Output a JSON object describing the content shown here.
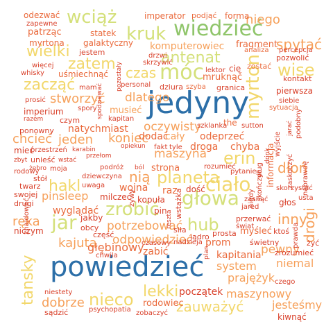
{
  "palette": [
    "#2c6fa8",
    "#8fc56a",
    "#d4e07a",
    "#f2d76b",
    "#f6a05a",
    "#ea6a3c",
    "#d9412b"
  ],
  "words": [
    {
      "text": "powiedzieć",
      "color": "#2c6fa8",
      "vertical": false
    },
    {
      "text": "jedyny",
      "color": "#2c6fa8",
      "vertical": false
    },
    {
      "text": "wiedzieć",
      "color": "#8fc56a",
      "vertical": false
    },
    {
      "text": "kruk",
      "color": "#d4e07a",
      "vertical": false
    },
    {
      "text": "móc",
      "color": "#d4e07a",
      "vertical": false
    },
    {
      "text": "głowa",
      "color": "#d4e07a",
      "vertical": false
    },
    {
      "text": "ciało",
      "color": "#f2d76b",
      "vertical": false
    },
    {
      "text": "antenat",
      "color": "#d4e07a",
      "vertical": false
    },
    {
      "text": "wciąż",
      "color": "#d4e07a",
      "vertical": false
    },
    {
      "text": "myrton",
      "color": "#f2d76b",
      "vertical": true
    },
    {
      "text": "zrobić",
      "color": "#d4e07a",
      "vertical": false
    },
    {
      "text": "jar",
      "color": "#d4e07a",
      "vertical": false
    },
    {
      "text": "nieco",
      "color": "#f2d76b",
      "vertical": false
    },
    {
      "text": "tansky",
      "color": "#f2d76b",
      "vertical": true
    },
    {
      "text": "planeta",
      "color": "#f2d76b",
      "vertical": false
    },
    {
      "text": "hub",
      "color": "#d4e07a",
      "vertical": false
    },
    {
      "text": "wise",
      "color": "#f2d76b",
      "vertical": false
    },
    {
      "text": "erin",
      "color": "#f2d76b",
      "vertical": false
    },
    {
      "text": "zatem",
      "color": "#f2d76b",
      "vertical": false
    },
    {
      "text": "zacząć",
      "color": "#f2d76b",
      "vertical": false
    },
    {
      "text": "czas",
      "color": "#f2d76b",
      "vertical": false
    },
    {
      "text": "wielki",
      "color": "#f2d76b",
      "vertical": false
    },
    {
      "text": "hakl",
      "color": "#f2d76b",
      "vertical": false
    },
    {
      "text": "lekki",
      "color": "#f2d76b",
      "vertical": false
    },
    {
      "text": "zauważyć",
      "color": "#f2d76b",
      "vertical": false
    },
    {
      "text": "dłoń",
      "color": "#f6a05a",
      "vertical": false
    },
    {
      "text": "drogi",
      "color": "#f6a05a",
      "vertical": true
    },
    {
      "text": "inny",
      "color": "#f6a05a",
      "vertical": false
    },
    {
      "text": "spytać",
      "color": "#f6a05a",
      "vertical": false
    },
    {
      "text": "niego",
      "color": "#f6a05a",
      "vertical": false
    },
    {
      "text": "stworzyć",
      "color": "#f6a05a",
      "vertical": false
    },
    {
      "text": "chcieć",
      "color": "#f6a05a",
      "vertical": false
    },
    {
      "text": "jeden",
      "color": "#f6a05a",
      "vertical": false
    },
    {
      "text": "dlatego",
      "color": "#f6a05a",
      "vertical": false
    },
    {
      "text": "oczywisty",
      "color": "#f6a05a",
      "vertical": false
    },
    {
      "text": "maszyna",
      "color": "#f6a05a",
      "vertical": false
    },
    {
      "text": "nią",
      "color": "#f6a05a",
      "vertical": false
    },
    {
      "text": "koniec",
      "color": "#f6a05a",
      "vertical": false
    },
    {
      "text": "pinsleep",
      "color": "#f6a05a",
      "vertical": false
    },
    {
      "text": "ręka",
      "color": "#f6a05a",
      "vertical": false
    },
    {
      "text": "kajuta",
      "color": "#f6a05a",
      "vertical": false
    },
    {
      "text": "dobrze",
      "color": "#f6a05a",
      "vertical": false
    },
    {
      "text": "potrzebować",
      "color": "#f6a05a",
      "vertical": false
    },
    {
      "text": "odpowiedzieć",
      "color": "#f6a05a",
      "vertical": false
    },
    {
      "text": "głębinowy",
      "color": "#ea6a3c",
      "vertical": false
    },
    {
      "text": "system",
      "color": "#f6a05a",
      "vertical": false
    },
    {
      "text": "niemal",
      "color": "#f6a05a",
      "vertical": false
    },
    {
      "text": "pewny",
      "color": "#f6a05a",
      "vertical": false
    },
    {
      "text": "prajężyk",
      "color": "#f6a05a",
      "vertical": false
    },
    {
      "text": "maszynowy",
      "color": "#f6a05a",
      "vertical": false
    },
    {
      "text": "jesteśmy",
      "color": "#f6a05a",
      "vertical": false
    },
    {
      "text": "komputerowiec",
      "color": "#f6a05a",
      "vertical": false
    },
    {
      "text": "fragment",
      "color": "#ea6a3c",
      "vertical": false
    },
    {
      "text": "musieć",
      "color": "#f6a05a",
      "vertical": false
    },
    {
      "text": "natychmiast",
      "color": "#ea6a3c",
      "vertical": false
    },
    {
      "text": "dodać",
      "color": "#ea6a3c",
      "vertical": false
    },
    {
      "text": "cały",
      "color": "#f6a05a",
      "vertical": false
    },
    {
      "text": "odeprzeć",
      "color": "#ea6a3c",
      "vertical": false
    },
    {
      "text": "chyba",
      "color": "#ea6a3c",
      "vertical": false
    },
    {
      "text": "droga",
      "color": "#ea6a3c",
      "vertical": false
    },
    {
      "text": "wojna",
      "color": "#ea6a3c",
      "vertical": false
    },
    {
      "text": "raz",
      "color": "#ea6a3c",
      "vertical": false
    },
    {
      "text": "strona",
      "color": "#ea6a3c",
      "vertical": false
    },
    {
      "text": "wyglądać",
      "color": "#ea6a3c",
      "vertical": false
    },
    {
      "text": "kapitania",
      "color": "#ea6a3c",
      "vertical": false
    },
    {
      "text": "prom",
      "color": "#ea6a3c",
      "vertical": false
    },
    {
      "text": "myśleć",
      "color": "#ea6a3c",
      "vertical": false
    },
    {
      "text": "zabić",
      "color": "#ea6a3c",
      "vertical": false
    },
    {
      "text": "rodowiec",
      "color": "#ea6a3c",
      "vertical": false
    },
    {
      "text": "początek",
      "color": "#d9412b",
      "vertical": false
    },
    {
      "text": "imperator",
      "color": "#ea6a3c",
      "vertical": false
    },
    {
      "text": "podjąć",
      "color": "#ea6a3c",
      "vertical": false
    },
    {
      "text": "forma",
      "color": "#ea6a3c",
      "vertical": false
    },
    {
      "text": "odezwać",
      "color": "#ea6a3c",
      "vertical": false
    },
    {
      "text": "zapewne",
      "color": "#d9412b",
      "vertical": false
    },
    {
      "text": "patrząc",
      "color": "#ea6a3c",
      "vertical": false
    },
    {
      "text": "statek",
      "color": "#ea6a3c",
      "vertical": false
    },
    {
      "text": "myrtona",
      "color": "#ea6a3c",
      "vertical": false
    },
    {
      "text": "galaktyczny",
      "color": "#ea6a3c",
      "vertical": false
    },
    {
      "text": "jestem",
      "color": "#d9412b",
      "vertical": false
    },
    {
      "text": "więcej",
      "color": "#d9412b",
      "vertical": false
    },
    {
      "text": "uśmiechnąć",
      "color": "#ea6a3c",
      "vertical": false
    },
    {
      "text": "whisky",
      "color": "#d9412b",
      "vertical": false
    },
    {
      "text": "drzwi",
      "color": "#d9412b",
      "vertical": false
    },
    {
      "text": "skrzywić",
      "color": "#d9412b",
      "vertical": false
    },
    {
      "text": "mruknąć",
      "color": "#ea6a3c",
      "vertical": false
    },
    {
      "text": "cię",
      "color": "#d9412b",
      "vertical": false
    },
    {
      "text": "zostać",
      "color": "#ea6a3c",
      "vertical": false
    },
    {
      "text": "pozwolić",
      "color": "#d9412b",
      "vertical": false
    },
    {
      "text": "analiza",
      "color": "#ea6a3c",
      "vertical": false
    },
    {
      "text": "percepcja",
      "color": "#d9412b",
      "vertical": false
    },
    {
      "text": "kontakt",
      "color": "#d9412b",
      "vertical": false
    },
    {
      "text": "pierwsza",
      "color": "#d9412b",
      "vertical": false
    },
    {
      "text": "siebie",
      "color": "#d9412b",
      "vertical": false
    },
    {
      "text": "sytuacja",
      "color": "#ea6a3c",
      "vertical": false
    },
    {
      "text": "the",
      "color": "#ea6a3c",
      "vertical": false
    },
    {
      "text": "lektor",
      "color": "#d9412b",
      "vertical": false
    },
    {
      "text": "personal",
      "color": "#d9412b",
      "vertical": false
    },
    {
      "text": "dziura",
      "color": "#d9412b",
      "vertical": false
    },
    {
      "text": "szyba",
      "color": "#ea6a3c",
      "vertical": false
    },
    {
      "text": "granica",
      "color": "#d9412b",
      "vertical": false
    },
    {
      "text": "mam",
      "color": "#d9412b",
      "vertical": false
    },
    {
      "text": "prosić",
      "color": "#d9412b",
      "vertical": false
    },
    {
      "text": "imperium",
      "color": "#d9412b",
      "vertical": false
    },
    {
      "text": "spory",
      "color": "#d9412b",
      "vertical": false
    },
    {
      "text": "razem",
      "color": "#d9412b",
      "vertical": false
    },
    {
      "text": "czym",
      "color": "#d9412b",
      "vertical": false
    },
    {
      "text": "kapitan",
      "color": "#d9412b",
      "vertical": false
    },
    {
      "text": "ponowny",
      "color": "#d9412b",
      "vertical": false
    },
    {
      "text": "szklanka",
      "color": "#d9412b",
      "vertical": false
    },
    {
      "text": "sutton",
      "color": "#d9412b",
      "vertical": false
    },
    {
      "text": "mieć",
      "color": "#d9412b",
      "vertical": false
    },
    {
      "text": "przestrzeń",
      "color": "#d9412b",
      "vertical": false
    },
    {
      "text": "karabin",
      "color": "#d9412b",
      "vertical": false
    },
    {
      "text": "opiekun",
      "color": "#d9412b",
      "vertical": false
    },
    {
      "text": "fakt",
      "color": "#d9412b",
      "vertical": false
    },
    {
      "text": "tyle",
      "color": "#d9412b",
      "vertical": false
    },
    {
      "text": "zbyt",
      "color": "#d9412b",
      "vertical": false
    },
    {
      "text": "unieść",
      "color": "#d9412b",
      "vertical": false
    },
    {
      "text": "wstać",
      "color": "#d9412b",
      "vertical": false
    },
    {
      "text": "przełom",
      "color": "#d9412b",
      "vertical": false
    },
    {
      "text": "rodowy",
      "color": "#d9412b",
      "vertical": false
    },
    {
      "text": "żebro",
      "color": "#d9412b",
      "vertical": false
    },
    {
      "text": "moja",
      "color": "#d9412b",
      "vertical": false
    },
    {
      "text": "podróż",
      "color": "#d9412b",
      "vertical": false
    },
    {
      "text": "ból",
      "color": "#d9412b",
      "vertical": false
    },
    {
      "text": "rozumieć",
      "color": "#d9412b",
      "vertical": false
    },
    {
      "text": "pytanie",
      "color": "#d9412b",
      "vertical": false
    },
    {
      "text": "stół",
      "color": "#d9412b",
      "vertical": false
    },
    {
      "text": "dziewczyna",
      "color": "#d9412b",
      "vertical": false
    },
    {
      "text": "twarz",
      "color": "#d9412b",
      "vertical": false
    },
    {
      "text": "uwaga",
      "color": "#d9412b",
      "vertical": false
    },
    {
      "text": "swojej",
      "color": "#d9412b",
      "vertical": false
    },
    {
      "text": "drugi",
      "color": "#d9412b",
      "vertical": false
    },
    {
      "text": "milczeć",
      "color": "#d9412b",
      "vertical": false
    },
    {
      "text": "kopuła",
      "color": "#d9412b",
      "vertical": false
    },
    {
      "text": "dość",
      "color": "#d9412b",
      "vertical": false
    },
    {
      "text": "skorzystać",
      "color": "#d9412b",
      "vertical": false
    },
    {
      "text": "usta",
      "color": "#d9412b",
      "vertical": false
    },
    {
      "text": "głos",
      "color": "#d9412b",
      "vertical": false
    },
    {
      "text": "zasnąć",
      "color": "#d9412b",
      "vertical": false
    },
    {
      "text": "jared",
      "color": "#d9412b",
      "vertical": false
    },
    {
      "text": "pin",
      "color": "#d9412b",
      "vertical": false
    },
    {
      "text": "jakby",
      "color": "#d9412b",
      "vertical": false
    },
    {
      "text": "obcy",
      "color": "#d9412b",
      "vertical": false
    },
    {
      "text": "siła",
      "color": "#d9412b",
      "vertical": false
    },
    {
      "text": "jądro",
      "color": "#d9412b",
      "vertical": false
    },
    {
      "text": "przerwać",
      "color": "#d9412b",
      "vertical": false
    },
    {
      "text": "świat",
      "color": "#d9412b",
      "vertical": false
    },
    {
      "text": "ktoś",
      "color": "#d9412b",
      "vertical": false
    },
    {
      "text": "niczym",
      "color": "#d9412b",
      "vertical": false
    },
    {
      "text": "część",
      "color": "#d9412b",
      "vertical": false
    },
    {
      "text": "prosta",
      "color": "#d9412b",
      "vertical": false
    },
    {
      "text": "świetny",
      "color": "#d9412b",
      "vertical": false
    },
    {
      "text": "żyć",
      "color": "#d9412b",
      "vertical": false
    },
    {
      "text": "czasowy",
      "color": "#d9412b",
      "vertical": false
    },
    {
      "text": "nadzieja",
      "color": "#d9412b",
      "vertical": false
    },
    {
      "text": "zrozumieć",
      "color": "#d9412b",
      "vertical": false
    },
    {
      "text": "chwila",
      "color": "#d9412b",
      "vertical": false
    },
    {
      "text": "czego",
      "color": "#d9412b",
      "vertical": false
    },
    {
      "text": "niestety",
      "color": "#d9412b",
      "vertical": false
    },
    {
      "text": "sądzić",
      "color": "#d9412b",
      "vertical": false
    },
    {
      "text": "psychopatia",
      "color": "#d9412b",
      "vertical": false
    },
    {
      "text": "zobaczyć",
      "color": "#d9412b",
      "vertical": false
    },
    {
      "text": "kiwnąć",
      "color": "#d9412b",
      "vertical": false
    },
    {
      "text": "pozostały",
      "color": "#d9412b",
      "vertical": true
    },
    {
      "text": "spodziewać",
      "color": "#d9412b",
      "vertical": true
    },
    {
      "text": "żywy",
      "color": "#d9412b",
      "vertical": true
    },
    {
      "text": "znajdować",
      "color": "#d9412b",
      "vertical": true
    },
    {
      "text": "wstążka",
      "color": "#d9412b",
      "vertical": true
    },
    {
      "text": "reszta",
      "color": "#d9412b",
      "vertical": true
    },
    {
      "text": "plan",
      "color": "#d9412b",
      "vertical": true
    },
    {
      "text": "informacja",
      "color": "#ea6a3c",
      "vertical": true
    },
    {
      "text": "skończyć",
      "color": "#d9412b",
      "vertical": true
    },
    {
      "text": "dług",
      "color": "#d9412b",
      "vertical": true
    },
    {
      "text": "nigdy",
      "color": "#d9412b",
      "vertical": true
    },
    {
      "text": "drink",
      "color": "#d9412b",
      "vertical": true
    },
    {
      "text": "wyjście",
      "color": "#d9412b",
      "vertical": true
    },
    {
      "text": "jarać",
      "color": "#d9412b",
      "vertical": true
    },
    {
      "text": "podobny",
      "color": "#d9412b",
      "vertical": true
    },
    {
      "text": "zaskoczyć",
      "color": "#d9412b",
      "vertical": true
    },
    {
      "text": "naprawdę",
      "color": "#d9412b",
      "vertical": true
    },
    {
      "text": "prawda",
      "color": "#d9412b",
      "vertical": true
    }
  ]
}
